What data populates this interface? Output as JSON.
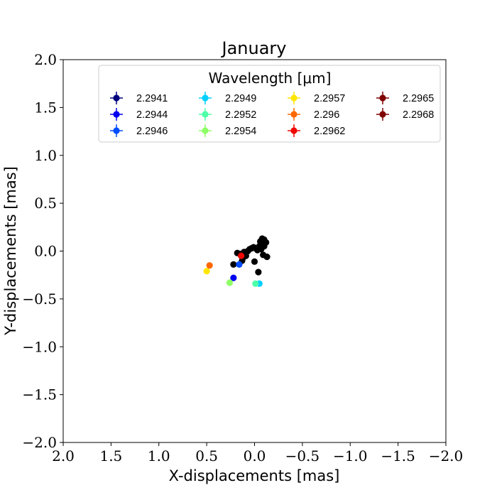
{
  "chart_data": {
    "type": "scatter",
    "title": "January",
    "xlabel": "X-displacements [mas]",
    "ylabel": "Y-displacements [mas]",
    "xlim": [
      2.0,
      -2.0
    ],
    "ylim": [
      -2.0,
      2.0
    ],
    "x_inverted": true,
    "grid": false,
    "x_ticks": [
      2.0,
      1.5,
      1.0,
      0.5,
      0.0,
      -0.5,
      -1.0,
      -1.5,
      -2.0
    ],
    "x_tick_labels": [
      "2.0",
      "1.5",
      "1.0",
      "0.5",
      "0.0",
      "−0.5",
      "−1.0",
      "−1.5",
      "−2.0"
    ],
    "y_ticks": [
      2.0,
      1.5,
      1.0,
      0.5,
      0.0,
      -0.5,
      -1.0,
      -1.5,
      -2.0
    ],
    "y_tick_labels": [
      "2.0",
      "1.5",
      "1.0",
      "0.5",
      "0.0",
      "−0.5",
      "−1.0",
      "−1.5",
      "−2.0"
    ],
    "legend": {
      "title": "Wavelength [μm]",
      "placement": "top-center",
      "columns": 4
    },
    "series": [
      {
        "name": "2.2941",
        "color": "#00007f",
        "points": []
      },
      {
        "name": "2.2944",
        "color": "#0000f1",
        "points": [
          [
            0.22,
            -0.28
          ]
        ]
      },
      {
        "name": "2.2946",
        "color": "#004cff",
        "points": [
          [
            0.16,
            -0.14
          ]
        ]
      },
      {
        "name": "2.2949",
        "color": "#00d0ff",
        "points": [
          [
            -0.05,
            -0.34
          ]
        ]
      },
      {
        "name": "2.2952",
        "color": "#4effa9",
        "points": [
          [
            -0.01,
            -0.34
          ]
        ]
      },
      {
        "name": "2.2954",
        "color": "#8fff66",
        "points": [
          [
            0.26,
            -0.33
          ]
        ]
      },
      {
        "name": "2.2957",
        "color": "#ffe600",
        "points": [
          [
            0.5,
            -0.21
          ]
        ]
      },
      {
        "name": "2.296",
        "color": "#ff6800",
        "points": [
          [
            0.47,
            -0.15
          ]
        ]
      },
      {
        "name": "2.2962",
        "color": "#f10700",
        "points": [
          [
            0.14,
            -0.05
          ]
        ]
      },
      {
        "name": "2.2965",
        "color": "#7f0000",
        "points": []
      },
      {
        "name": "2.2968",
        "color": "#7f0000",
        "points": []
      }
    ],
    "extra_points": {
      "color": "#000000",
      "points": [
        [
          0.22,
          -0.14
        ],
        [
          0.15,
          -0.03
        ],
        [
          0.13,
          -0.1
        ],
        [
          0.11,
          -0.01
        ],
        [
          0.09,
          -0.05
        ],
        [
          0.07,
          0.0
        ],
        [
          0.05,
          0.02
        ],
        [
          0.03,
          0.03
        ],
        [
          0.01,
          0.04
        ],
        [
          -0.01,
          0.03
        ],
        [
          0.0,
          -0.11
        ],
        [
          -0.03,
          0.01
        ],
        [
          -0.05,
          0.05
        ],
        [
          -0.06,
          0.1
        ],
        [
          -0.08,
          0.13
        ],
        [
          -0.1,
          0.12
        ],
        [
          -0.12,
          0.09
        ],
        [
          -0.1,
          0.05
        ],
        [
          -0.07,
          0.02
        ],
        [
          -0.09,
          -0.04
        ],
        [
          -0.13,
          -0.06
        ],
        [
          -0.04,
          -0.22
        ],
        [
          0.18,
          -0.02
        ],
        [
          0.12,
          -0.07
        ]
      ]
    }
  }
}
